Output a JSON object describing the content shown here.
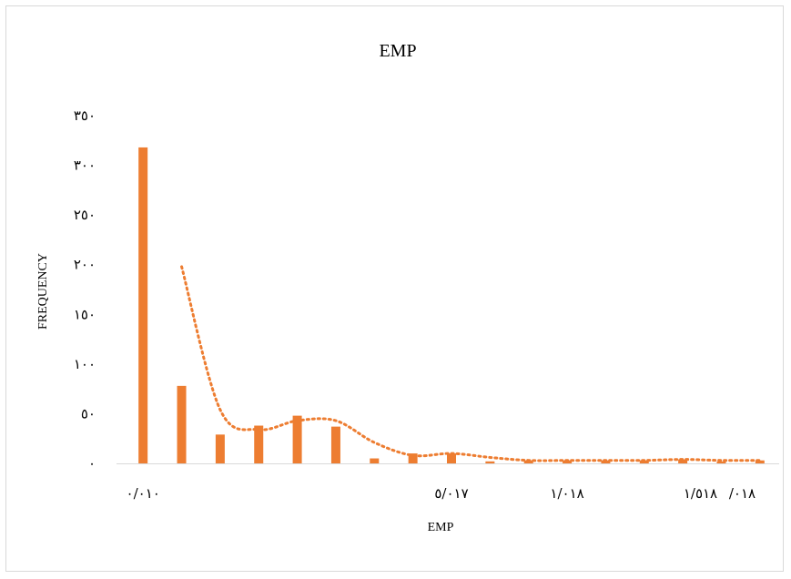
{
  "chart_data": {
    "type": "bar",
    "title": "EMP",
    "xlabel": "EMP",
    "ylabel": "FREQUENCY",
    "ylim": [
      0,
      350
    ],
    "y_ticks": [
      "٠",
      "٥٠",
      "١٠٠",
      "١٥٠",
      "٢٠٠",
      "٢٥٠",
      "٣٠٠",
      "٣٥٠"
    ],
    "y_tick_values": [
      0,
      50,
      100,
      150,
      200,
      250,
      300,
      350
    ],
    "x_tick_labels": [
      {
        "index": 0,
        "label": "٠/٠١٠"
      },
      {
        "index": 8,
        "label": "٥/٠١٧"
      },
      {
        "index": 11,
        "label": "١/٠١٨"
      },
      {
        "index": 15,
        "label": "١/٥١٨"
      },
      {
        "index": 15,
        "label": "/٠١٨"
      }
    ],
    "bar_color": "#ed7d31",
    "trendline_color": "#ed7d31",
    "series": [
      {
        "values": [
          318,
          78,
          29,
          38,
          48,
          37,
          5,
          10,
          10,
          2,
          3,
          3,
          3,
          3,
          4,
          2,
          3
        ]
      }
    ],
    "trendline": {
      "kind": "moving-average",
      "values": [
        null,
        198,
        54,
        34,
        43,
        43,
        21,
        8,
        10,
        6,
        3,
        3,
        3,
        3,
        4,
        3,
        3
      ]
    },
    "grid": false,
    "legend": "none"
  }
}
